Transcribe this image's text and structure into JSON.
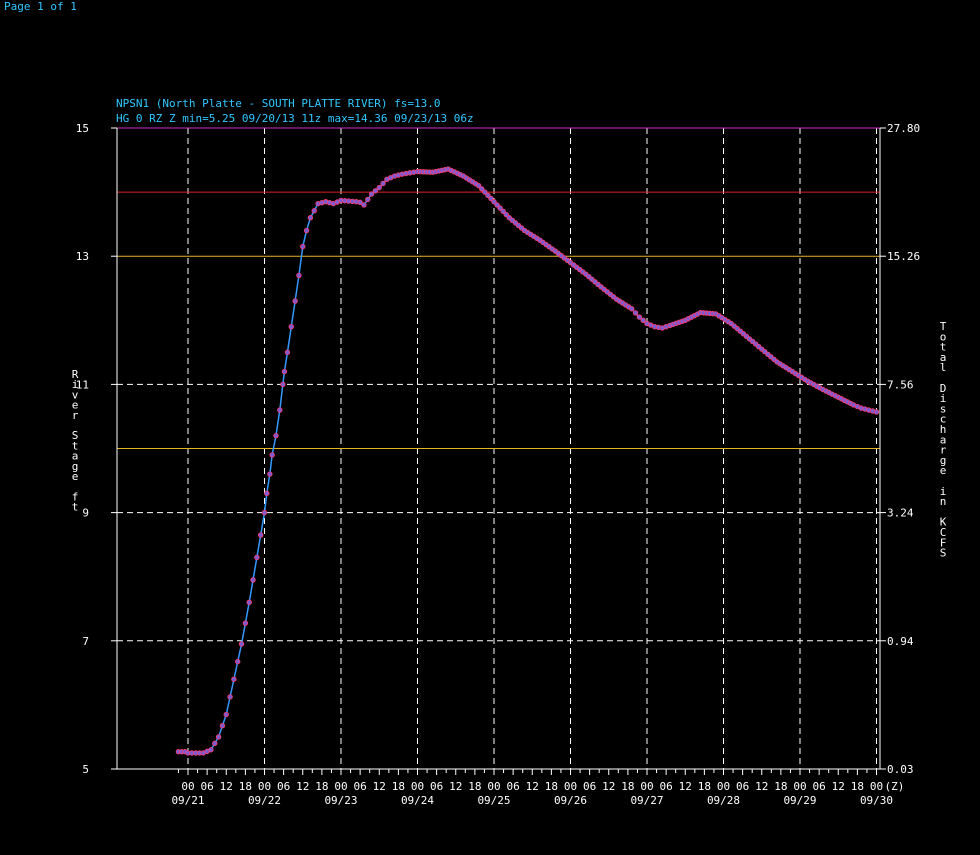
{
  "page": {
    "indicator": "Page 1 of 1"
  },
  "colors": {
    "background": "#000000",
    "cyan": "#31c8ff",
    "axis": "#ffffff",
    "line": "#3399ff",
    "point_fill": "#7a5bd6",
    "point_stroke": "#ff3b6b",
    "major_flood": "#cc33cc",
    "moderate_flood": "#dd2222",
    "flood_action": "#e6b422"
  },
  "chart_data": {
    "type": "line",
    "title": "NPSN1 (North Platte - SOUTH PLATTE RIVER) fs=13.0",
    "subtitle": "HG 0 RZ Z min=5.25 09/20/13 11z max=14.36 09/23/13 06z",
    "ylabel_left": "River Stage ft",
    "ylabel_right": "Total Discharge in KCFS",
    "ylim": [
      5,
      15
    ],
    "left_ticks": [
      "5",
      "7",
      "9",
      "11",
      "13",
      "15"
    ],
    "right_ticks": [
      "0.03",
      "0.94",
      "3.24",
      "7.56",
      "15.26",
      "27.80"
    ],
    "xlim": [
      -0.125,
      9.0
    ],
    "x_unit_label": "(Z)",
    "hour_labels": [
      "00",
      "06",
      "12",
      "18"
    ],
    "day_labels": [
      "09/21",
      "09/22",
      "09/23",
      "09/24",
      "09/25",
      "09/26",
      "09/27",
      "09/28",
      "09/29",
      "09/30"
    ],
    "threshold_lines": [
      {
        "stage": 15,
        "kind": "major_flood"
      },
      {
        "stage": 14,
        "kind": "moderate_flood"
      },
      {
        "stage": 13,
        "kind": "flood_action"
      },
      {
        "stage": 10,
        "kind": "flood_action"
      }
    ],
    "series": [
      {
        "x": [
          -0.125,
          -0.04,
          0.0,
          0.1,
          0.2,
          0.3,
          0.4,
          0.5,
          0.6,
          0.7,
          0.8,
          0.9,
          1.0,
          1.03,
          1.07,
          1.1,
          1.15,
          1.2,
          1.24,
          1.26,
          1.3,
          1.35,
          1.4,
          1.45,
          1.5,
          1.55,
          1.6,
          1.7,
          1.8,
          1.9,
          2.0,
          2.1,
          2.2,
          2.25,
          2.3,
          2.4,
          2.5,
          2.6,
          2.7,
          2.8,
          2.9,
          3.0,
          3.2,
          3.4,
          3.6,
          3.8,
          4.0,
          4.2,
          4.4,
          4.6,
          4.8,
          5.0,
          5.2,
          5.4,
          5.6,
          5.8,
          5.9,
          6.0,
          6.1,
          6.2,
          6.3,
          6.5,
          6.7,
          6.9,
          7.1,
          7.3,
          7.5,
          7.7,
          7.9,
          8.1,
          8.3,
          8.5,
          8.7,
          8.8,
          8.9,
          9.0
        ],
        "y": [
          5.27,
          5.27,
          5.25,
          5.25,
          5.25,
          5.3,
          5.5,
          5.85,
          6.4,
          6.95,
          7.6,
          8.3,
          9.0,
          9.3,
          9.6,
          9.9,
          10.2,
          10.6,
          11.0,
          11.2,
          11.5,
          11.9,
          12.3,
          12.7,
          13.15,
          13.4,
          13.6,
          13.82,
          13.85,
          13.82,
          13.87,
          13.86,
          13.85,
          13.84,
          13.8,
          13.97,
          14.07,
          14.2,
          14.25,
          14.28,
          14.3,
          14.32,
          14.31,
          14.36,
          14.25,
          14.1,
          13.85,
          13.6,
          13.4,
          13.25,
          13.08,
          12.9,
          12.72,
          12.52,
          12.33,
          12.18,
          12.05,
          11.95,
          11.9,
          11.88,
          11.92,
          12.0,
          12.12,
          12.1,
          11.95,
          11.75,
          11.55,
          11.35,
          11.2,
          11.05,
          10.92,
          10.8,
          10.68,
          10.63,
          10.6,
          10.57
        ]
      }
    ]
  }
}
